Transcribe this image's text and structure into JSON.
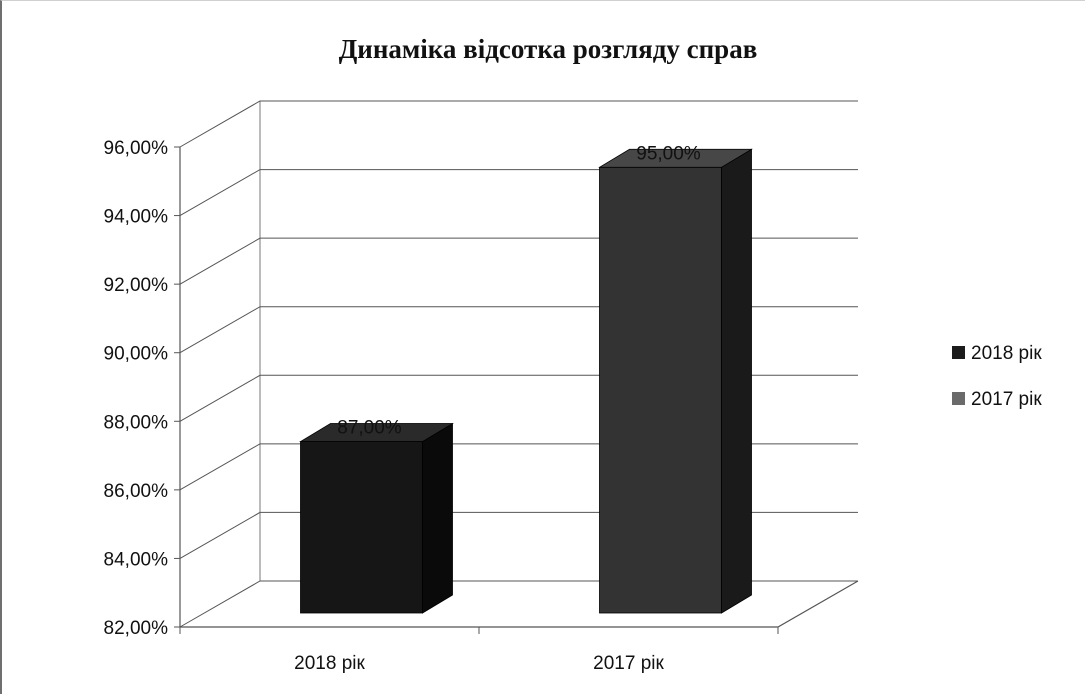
{
  "chart_data": {
    "type": "bar",
    "title": "Динаміка відсотка розгляду справ",
    "xlabel": "",
    "ylabel": "",
    "categories": [
      "2018 рік",
      "2017 рік"
    ],
    "series": [
      {
        "name": "2018 рік",
        "color": "#1c1c1c",
        "values": [
          87.0,
          null
        ]
      },
      {
        "name": "2017 рік",
        "color": "#3a3a3a",
        "values": [
          null,
          95.0
        ]
      }
    ],
    "data_labels": [
      "87,00%",
      "95,00%"
    ],
    "yticks": [
      "82,00%",
      "84,00%",
      "86,00%",
      "88,00%",
      "90,00%",
      "92,00%",
      "94,00%",
      "96,00%"
    ],
    "ylim": [
      82,
      96
    ],
    "grid": true,
    "legend_position": "right",
    "style": "3d-clustered-column"
  }
}
